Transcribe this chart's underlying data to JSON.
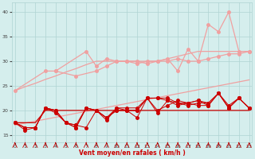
{
  "x": [
    0,
    1,
    2,
    3,
    4,
    5,
    6,
    7,
    8,
    9,
    10,
    11,
    12,
    13,
    14,
    15,
    16,
    17,
    18,
    19,
    20,
    21,
    22,
    23
  ],
  "trend_upper": [
    24.0,
    24.8,
    25.5,
    26.3,
    27.0,
    27.8,
    28.5,
    29.3,
    30.0,
    30.0,
    30.0,
    30.0,
    30.0,
    30.0,
    30.0,
    30.5,
    31.0,
    31.5,
    32.0,
    32.0,
    32.0,
    32.0,
    32.0,
    32.0
  ],
  "trend_lower": [
    17.0,
    17.4,
    17.8,
    18.2,
    18.6,
    19.0,
    19.4,
    19.8,
    20.2,
    20.6,
    21.0,
    21.4,
    21.8,
    22.2,
    22.6,
    23.0,
    23.4,
    23.8,
    24.2,
    24.6,
    25.0,
    25.4,
    25.8,
    26.2
  ],
  "light_jagged_top": [
    null,
    null,
    null,
    null,
    28.0,
    null,
    null,
    32.0,
    29.0,
    30.5,
    30.0,
    30.0,
    30.0,
    29.5,
    30.0,
    30.5,
    28.0,
    32.5,
    30.0,
    37.5,
    36.0,
    40.0,
    32.0,
    32.0
  ],
  "light_jagged_mid": [
    24.0,
    null,
    null,
    28.0,
    28.0,
    null,
    27.0,
    null,
    28.0,
    29.0,
    30.0,
    30.0,
    29.5,
    30.0,
    30.0,
    30.0,
    30.5,
    30.0,
    30.0,
    30.5,
    31.0,
    31.5,
    31.5,
    32.0
  ],
  "dark_flat": [
    17.5,
    17.5,
    17.5,
    20.0,
    20.0,
    20.0,
    20.0,
    20.0,
    20.0,
    20.0,
    20.0,
    20.0,
    20.0,
    20.0,
    20.0,
    20.0,
    20.0,
    20.0,
    20.0,
    20.0,
    20.0,
    20.0,
    20.0,
    20.0
  ],
  "dark_line1": [
    17.5,
    16.5,
    16.5,
    20.5,
    19.5,
    17.5,
    17.0,
    16.5,
    20.0,
    18.5,
    20.0,
    20.0,
    18.5,
    22.5,
    20.0,
    21.0,
    22.0,
    21.5,
    21.0,
    21.0,
    23.5,
    20.5,
    22.5,
    20.5
  ],
  "dark_line2": [
    17.5,
    16.5,
    16.5,
    20.5,
    20.0,
    17.5,
    17.0,
    20.5,
    20.0,
    18.5,
    20.0,
    20.0,
    20.0,
    22.5,
    22.5,
    22.0,
    21.0,
    21.5,
    22.0,
    21.5,
    23.5,
    21.0,
    22.5,
    20.5
  ],
  "dark_line3": [
    17.5,
    16.5,
    16.5,
    20.5,
    20.0,
    17.5,
    16.5,
    20.5,
    20.0,
    18.5,
    20.5,
    20.0,
    20.0,
    22.5,
    22.5,
    22.5,
    21.5,
    21.0,
    21.5,
    21.5,
    23.5,
    20.5,
    22.5,
    20.5
  ],
  "dark_line4": [
    17.5,
    16.0,
    16.5,
    20.5,
    20.0,
    17.5,
    16.5,
    20.5,
    20.0,
    18.0,
    20.5,
    20.5,
    20.5,
    22.5,
    19.5,
    22.0,
    21.5,
    21.5,
    22.0,
    21.0,
    23.5,
    20.5,
    22.5,
    20.5
  ],
  "bg_color": "#d5eeed",
  "grid_color": "#afd4d2",
  "light_color": "#f0a0a0",
  "dark_color": "#cc0000",
  "xlabel": "Vent moyen/en rafales ( km/h )",
  "ylim": [
    13.5,
    42
  ],
  "yticks": [
    15,
    20,
    25,
    30,
    35,
    40
  ],
  "xlim": [
    -0.3,
    23.3
  ],
  "xticks": [
    0,
    1,
    2,
    3,
    4,
    5,
    6,
    7,
    8,
    9,
    10,
    11,
    12,
    13,
    14,
    15,
    16,
    17,
    18,
    19,
    20,
    21,
    22,
    23
  ]
}
